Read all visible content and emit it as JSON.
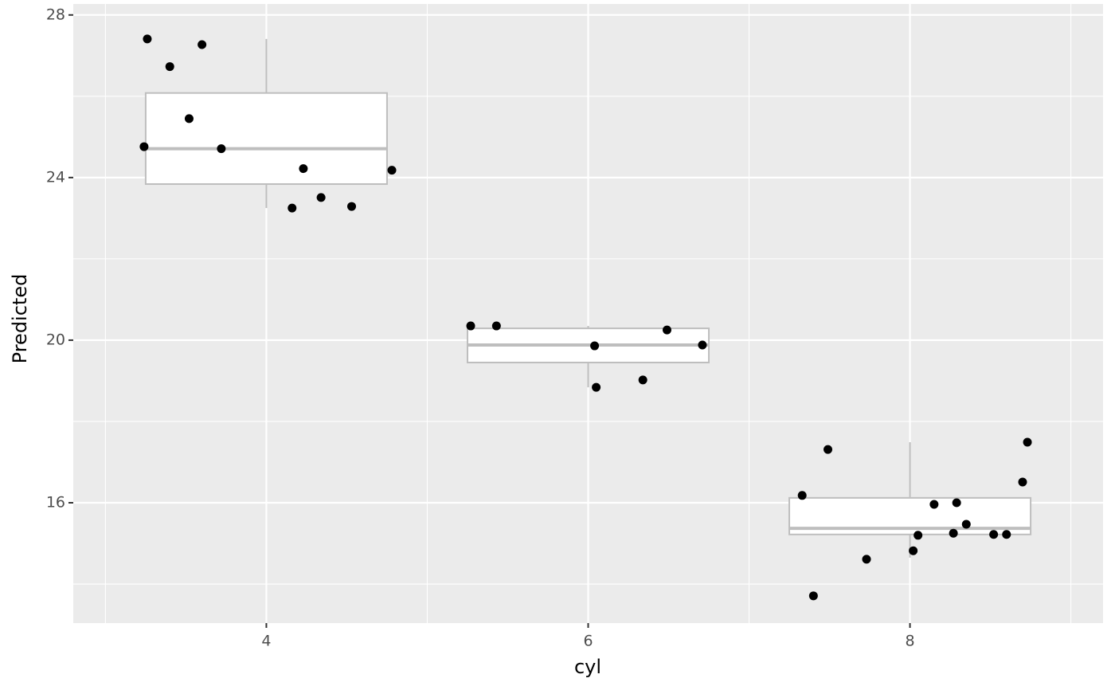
{
  "chart_data": {
    "type": "box",
    "x_label": "cyl",
    "y_label": "Predicted",
    "xlim": [
      2.8,
      9.2
    ],
    "xticks": [
      4,
      6,
      8
    ],
    "ylim": [
      13.04,
      28.27
    ],
    "yticks": [
      16,
      20,
      24,
      28
    ],
    "grid": true,
    "minor_grid": true,
    "panel_color": "#ebebeb",
    "box_color": "#bebebe",
    "box_fill": "#ffffff",
    "point_color": "#000000",
    "boxes": [
      {
        "x": 4,
        "whisker_low": 23.25,
        "q1": 23.84,
        "median": 24.71,
        "q3": 26.08,
        "whisker_high": 27.41
      },
      {
        "x": 6,
        "whisker_low": 18.84,
        "q1": 19.45,
        "median": 19.88,
        "q3": 20.29,
        "whisker_high": 20.35
      },
      {
        "x": 8,
        "whisker_low": 14.65,
        "q1": 15.22,
        "median": 15.37,
        "q3": 16.12,
        "whisker_high": 17.49
      }
    ],
    "points": {
      "x": [
        3.26,
        3.4,
        3.6,
        3.52,
        3.24,
        3.72,
        4.23,
        4.78,
        4.16,
        4.34,
        4.53,
        5.27,
        5.43,
        6.04,
        6.49,
        6.71,
        6.05,
        6.34,
        7.33,
        7.49,
        7.4,
        7.73,
        8.02,
        8.05,
        8.15,
        8.29,
        8.27,
        8.35,
        8.52,
        8.6,
        8.7,
        8.73
      ],
      "y": [
        27.41,
        26.73,
        27.27,
        25.45,
        24.76,
        24.71,
        24.22,
        24.18,
        23.25,
        23.51,
        23.29,
        20.35,
        20.35,
        19.86,
        20.25,
        19.88,
        18.84,
        19.02,
        16.18,
        17.31,
        13.71,
        14.61,
        14.82,
        15.2,
        15.96,
        16.0,
        15.25,
        15.47,
        15.22,
        15.22,
        16.51,
        17.49
      ]
    }
  }
}
